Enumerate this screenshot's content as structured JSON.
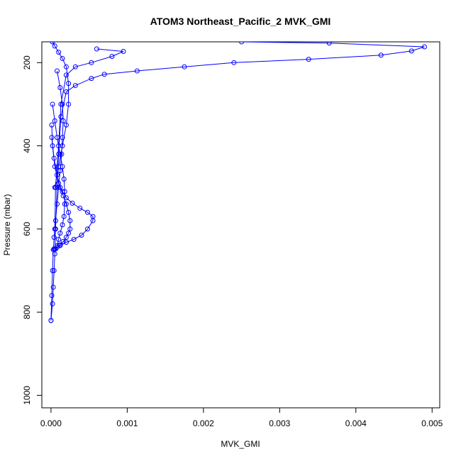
{
  "chart_data": {
    "type": "scatter",
    "title": "ATOM3 Northeast_Pacific_2 MVK_GMI",
    "xlabel": "MVK_GMI",
    "ylabel": "Pressure (mbar)",
    "xlim": [
      -0.00012,
      0.0051
    ],
    "ylim": [
      1030,
      150
    ],
    "y_reversed": true,
    "x_ticks": [
      0.0,
      0.001,
      0.002,
      0.003,
      0.004,
      0.005
    ],
    "x_tick_labels": [
      "0.000",
      "0.001",
      "0.002",
      "0.003",
      "0.004",
      "0.005"
    ],
    "y_ticks": [
      200,
      400,
      600,
      800,
      1000
    ],
    "y_tick_labels": [
      "200",
      "400",
      "600",
      "800",
      "1000"
    ],
    "marker": "open-circle",
    "line": true,
    "grid": false,
    "color": "#0000ff",
    "series": [
      {
        "x": [
          0.0,
          2e-05,
          3e-05,
          4e-05,
          5e-05,
          6e-05,
          8e-05,
          0.0001,
          0.00013,
          0.0002,
          0.00032,
          0.00053,
          0.0007,
          0.00113,
          0.00175,
          0.0024,
          0.00338,
          0.00433,
          0.00473,
          0.0049,
          0.00365,
          0.0025
        ],
        "y": [
          820,
          780,
          740,
          700,
          660,
          600,
          500,
          420,
          330,
          270,
          255,
          238,
          228,
          220,
          210,
          200,
          192,
          182,
          172,
          162,
          153,
          150
        ]
      },
      {
        "x": [
          0.0,
          1e-05,
          2e-05,
          3e-05,
          5e-05,
          6e-05,
          0.0001,
          0.00013,
          0.0002,
          0.00032,
          0.00053,
          0.0008,
          0.00095,
          0.0006
        ],
        "y": [
          820,
          760,
          700,
          650,
          600,
          500,
          400,
          300,
          230,
          210,
          200,
          185,
          173,
          167
        ]
      },
      {
        "x": [
          1e-05,
          2e-05,
          5e-05,
          0.0001,
          0.00015,
          0.0002,
          0.00028,
          0.00038,
          0.00048,
          0.00055,
          0.00055,
          0.00048,
          0.0004,
          0.0003,
          0.0002,
          0.00012,
          5e-05
        ],
        "y": [
          350,
          400,
          450,
          490,
          510,
          525,
          538,
          550,
          560,
          570,
          580,
          600,
          615,
          625,
          632,
          640,
          648
        ]
      },
      {
        "x": [
          1e-05,
          4e-05,
          8e-05,
          0.00012,
          0.00016,
          0.0002,
          0.00023,
          0.00025,
          0.00025,
          0.00023,
          0.0002,
          0.00016,
          0.00012,
          8e-05,
          4e-05
        ],
        "y": [
          380,
          430,
          470,
          500,
          520,
          540,
          560,
          580,
          600,
          610,
          620,
          630,
          638,
          644,
          648
        ]
      },
      {
        "x": [
          2e-05,
          5e-05,
          8e-05,
          0.00012,
          0.00015,
          0.00017,
          0.00018,
          0.00018,
          0.00017,
          0.00015,
          0.00012,
          0.0001,
          8e-05,
          6e-05
        ],
        "y": [
          300,
          340,
          380,
          420,
          450,
          480,
          510,
          540,
          570,
          590,
          610,
          625,
          640,
          648
        ]
      },
      {
        "x": [
          8e-05,
          0.00012,
          0.00015,
          0.00016,
          0.00015,
          0.00014,
          0.00012,
          0.0001,
          8e-05,
          6e-05,
          4e-05
        ],
        "y": [
          220,
          260,
          300,
          340,
          380,
          420,
          460,
          500,
          540,
          580,
          620
        ]
      },
      {
        "x": [
          2e-05,
          5e-05,
          0.0001,
          0.00015,
          0.0002,
          0.00023,
          0.00023,
          0.0002,
          0.00015,
          0.0001,
          5e-05
        ],
        "y": [
          150,
          160,
          175,
          190,
          210,
          250,
          300,
          350,
          400,
          450,
          500
        ]
      }
    ]
  }
}
